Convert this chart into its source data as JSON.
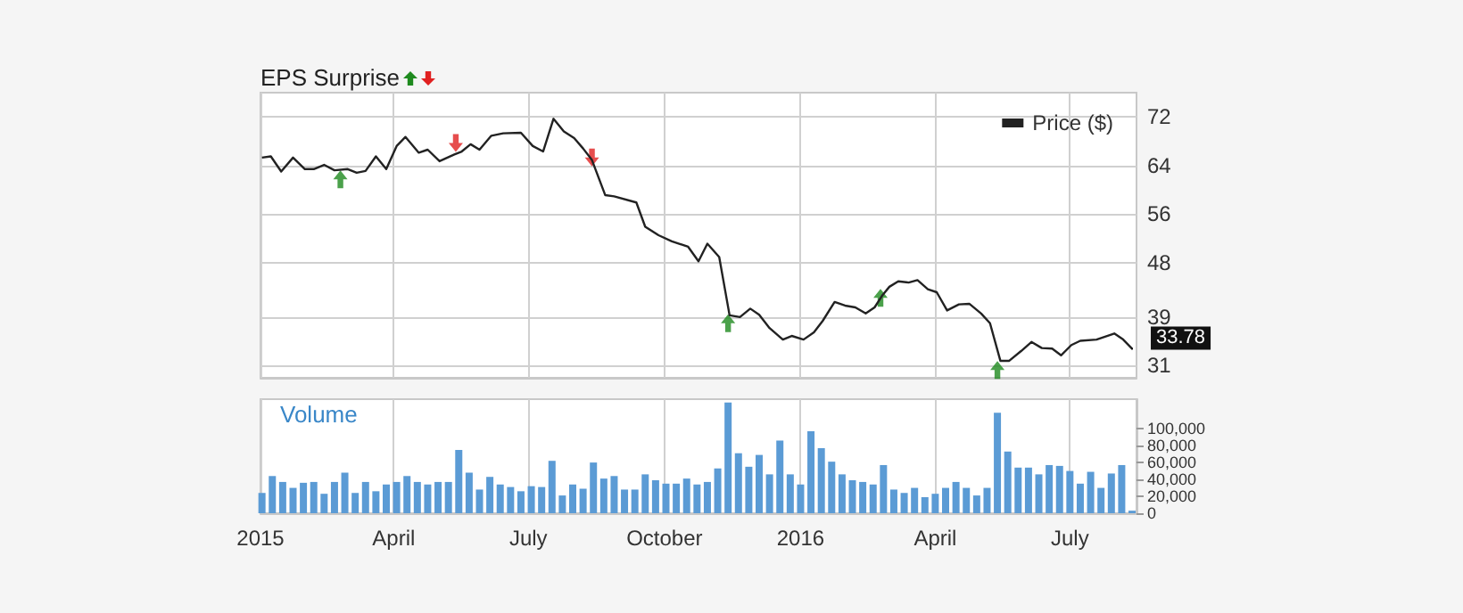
{
  "chart_data": [
    {
      "type": "line",
      "title": "EPS Surprise",
      "legend": "top right",
      "grid": true,
      "tick_labels": "y",
      "xlim": [
        "2015-01-01",
        "2016-08-15"
      ],
      "xticks": [
        {
          "value": "2015-01-01",
          "label": null
        },
        {
          "value": "2015-04-01",
          "label": null
        },
        {
          "value": "2015-07-01",
          "label": null
        },
        {
          "value": "2015-10-01",
          "label": null
        },
        {
          "value": "2016-01-01",
          "label": null
        },
        {
          "value": "2016-04-01",
          "label": null
        },
        {
          "value": "2016-07-01",
          "label": null
        }
      ],
      "ylim": [
        29,
        76
      ],
      "yticks": [
        31,
        39,
        48,
        56,
        64,
        72
      ],
      "annotations": [
        {
          "text": "33.78",
          "x": "2016-08-12",
          "y": 33.78
        }
      ],
      "series": [
        {
          "name": "Price ($)",
          "color": "#222222",
          "marker": "none",
          "x": [
            "2015-01-02",
            "2015-01-08",
            "2015-01-15",
            "2015-01-23",
            "2015-01-31",
            "2015-02-06",
            "2015-02-13",
            "2015-02-20",
            "2015-03-01",
            "2015-03-07",
            "2015-03-13",
            "2015-03-20",
            "2015-03-27",
            "2015-04-03",
            "2015-04-09",
            "2015-04-18",
            "2015-04-24",
            "2015-05-02",
            "2015-05-12",
            "2015-05-17",
            "2015-05-23",
            "2015-05-29",
            "2015-06-06",
            "2015-06-14",
            "2015-06-26",
            "2015-07-04",
            "2015-07-11",
            "2015-07-18",
            "2015-07-25",
            "2015-08-01",
            "2015-08-07",
            "2015-08-13",
            "2015-08-22",
            "2015-08-28",
            "2015-09-12",
            "2015-09-18",
            "2015-09-27",
            "2015-10-06",
            "2015-10-17",
            "2015-10-24",
            "2015-10-30",
            "2015-11-07",
            "2015-11-14",
            "2015-11-21",
            "2015-11-28",
            "2015-12-04",
            "2015-12-11",
            "2015-12-20",
            "2015-12-26",
            "2016-01-03",
            "2016-01-10",
            "2016-01-16",
            "2016-01-24",
            "2016-01-31",
            "2016-02-07",
            "2016-02-14",
            "2016-02-20",
            "2016-02-25",
            "2016-03-01",
            "2016-03-07",
            "2016-03-14",
            "2016-03-20",
            "2016-03-27",
            "2016-04-02",
            "2016-04-09",
            "2016-04-17",
            "2016-04-24",
            "2016-05-02",
            "2016-05-08",
            "2016-05-15",
            "2016-05-21",
            "2016-05-29",
            "2016-06-05",
            "2016-06-12",
            "2016-06-19",
            "2016-06-25",
            "2016-07-02",
            "2016-07-08",
            "2016-07-19",
            "2016-07-31",
            "2016-08-06",
            "2016-08-12"
          ],
          "values": [
            65.3,
            65.5,
            63.0,
            65.3,
            63.4,
            63.4,
            64.1,
            63.2,
            63.4,
            62.8,
            63.1,
            65.5,
            63.4,
            67.2,
            68.7,
            66.1,
            66.6,
            64.7,
            65.8,
            66.3,
            67.5,
            66.6,
            68.9,
            69.3,
            69.4,
            67.2,
            66.3,
            71.7,
            69.6,
            68.5,
            66.8,
            64.9,
            59.1,
            58.9,
            57.9,
            53.9,
            52.5,
            51.5,
            50.6,
            48.2,
            51.1,
            48.9,
            39.3,
            39.0,
            40.4,
            39.4,
            37.2,
            35.3,
            35.9,
            35.3,
            36.5,
            38.4,
            41.5,
            40.9,
            40.6,
            39.6,
            40.6,
            42.5,
            44.0,
            44.9,
            44.7,
            45.1,
            43.6,
            43.1,
            40.1,
            41.1,
            41.2,
            39.6,
            38.0,
            31.8,
            31.8,
            33.4,
            34.9,
            33.9,
            33.8,
            32.7,
            34.4,
            35.1,
            35.3,
            36.3,
            35.3,
            33.8
          ]
        },
        {
          "type": "scatter",
          "color": "#1e8a1e",
          "marker": "triangle",
          "x": [
            "2015-02-24",
            "2015-11-13",
            "2016-02-24",
            "2016-05-13"
          ],
          "values": [
            61.7,
            38.0,
            42.2,
            30.3
          ]
        },
        {
          "type": "scatter",
          "color": "#e02020",
          "marker": "triangle-down",
          "x": [
            "2015-05-13",
            "2015-08-13"
          ],
          "values": [
            67.7,
            65.3
          ]
        }
      ]
    },
    {
      "type": "bar",
      "ylabel": "Volume",
      "grid": "x",
      "xlim": [
        "2015-01-01",
        "2016-08-15"
      ],
      "xticks": [
        {
          "value": "2015-01-01",
          "label": "2015"
        },
        {
          "value": "2015-04-01",
          "label": "April"
        },
        {
          "value": "2015-07-01",
          "label": "July"
        },
        {
          "value": "2015-10-01",
          "label": "October"
        },
        {
          "value": "2016-01-01",
          "label": "2016"
        },
        {
          "value": "2016-04-01",
          "label": "April"
        },
        {
          "value": "2016-07-01",
          "label": "July"
        }
      ],
      "ylim": [
        0,
        135000
      ],
      "yticks": [
        0,
        {
          "value": 20000,
          "label": "20,000"
        },
        {
          "value": 40000,
          "label": "40,000"
        },
        {
          "value": 60000,
          "label": "60,000"
        },
        {
          "value": 80000,
          "label": "80,000"
        },
        {
          "value": 100000,
          "label": "100,000"
        }
      ],
      "series": [
        {
          "color": "#5b9bd5",
          "x": [
            "2015-01-02",
            "2015-01-09",
            "2015-01-16",
            "2015-01-23",
            "2015-01-30",
            "2015-02-06",
            "2015-02-13",
            "2015-02-20",
            "2015-02-27",
            "2015-03-06",
            "2015-03-13",
            "2015-03-20",
            "2015-03-27",
            "2015-04-03",
            "2015-04-10",
            "2015-04-17",
            "2015-04-24",
            "2015-05-01",
            "2015-05-08",
            "2015-05-15",
            "2015-05-22",
            "2015-05-29",
            "2015-06-05",
            "2015-06-12",
            "2015-06-19",
            "2015-06-26",
            "2015-07-03",
            "2015-07-10",
            "2015-07-17",
            "2015-07-24",
            "2015-07-31",
            "2015-08-07",
            "2015-08-14",
            "2015-08-21",
            "2015-08-28",
            "2015-09-04",
            "2015-09-11",
            "2015-09-18",
            "2015-09-25",
            "2015-10-02",
            "2015-10-09",
            "2015-10-16",
            "2015-10-23",
            "2015-10-30",
            "2015-11-06",
            "2015-11-13",
            "2015-11-20",
            "2015-11-27",
            "2015-12-04",
            "2015-12-11",
            "2015-12-18",
            "2015-12-25",
            "2016-01-01",
            "2016-01-08",
            "2016-01-15",
            "2016-01-22",
            "2016-01-29",
            "2016-02-05",
            "2016-02-12",
            "2016-02-19",
            "2016-02-26",
            "2016-03-04",
            "2016-03-11",
            "2016-03-18",
            "2016-03-25",
            "2016-04-01",
            "2016-04-08",
            "2016-04-15",
            "2016-04-22",
            "2016-04-29",
            "2016-05-06",
            "2016-05-13",
            "2016-05-20",
            "2016-05-27",
            "2016-06-03",
            "2016-06-10",
            "2016-06-17",
            "2016-06-24",
            "2016-07-01",
            "2016-07-08",
            "2016-07-15",
            "2016-07-22",
            "2016-07-29",
            "2016-08-05",
            "2016-08-12"
          ],
          "values": [
            24000,
            44000,
            37000,
            30000,
            36000,
            37000,
            23000,
            37000,
            48000,
            24000,
            37000,
            26000,
            34000,
            37000,
            44000,
            37000,
            34000,
            37000,
            37000,
            75000,
            48000,
            28000,
            43000,
            34000,
            31000,
            26000,
            32000,
            31000,
            62000,
            21000,
            34000,
            29000,
            60000,
            41000,
            44000,
            28000,
            28000,
            46000,
            39000,
            35000,
            35000,
            41000,
            34000,
            37000,
            53000,
            131000,
            71000,
            55000,
            69000,
            46000,
            86000,
            46000,
            34000,
            97000,
            77000,
            61000,
            46000,
            39000,
            37000,
            34000,
            57000,
            28000,
            24000,
            30000,
            19000,
            23000,
            30000,
            37000,
            30000,
            21000,
            30000,
            119000,
            73000,
            54000,
            54000,
            46000,
            57000,
            56000,
            50000,
            35000,
            49000,
            30000,
            47000,
            57000,
            3000
          ]
        }
      ]
    }
  ]
}
